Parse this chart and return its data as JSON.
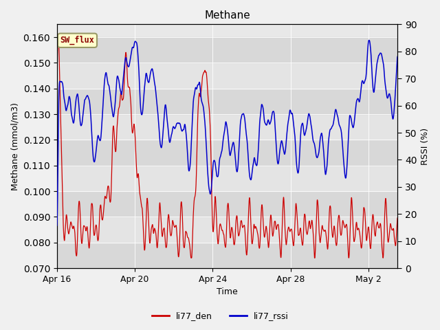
{
  "title": "Methane",
  "xlabel": "Time",
  "ylabel_left": "Methane (mmol/m3)",
  "ylabel_right": "RSSI (%)",
  "ylim_left": [
    0.07,
    0.165
  ],
  "ylim_right": [
    0,
    90
  ],
  "yticks_left": [
    0.07,
    0.08,
    0.09,
    0.1,
    0.11,
    0.12,
    0.13,
    0.14,
    0.15,
    0.16
  ],
  "yticks_right": [
    0,
    10,
    20,
    30,
    40,
    50,
    60,
    70,
    80,
    90
  ],
  "xtick_labels": [
    "Apr 16",
    "Apr 20",
    "Apr 24",
    "Apr 28",
    "May 2"
  ],
  "color_den": "#cc0000",
  "color_rssi": "#0000cc",
  "legend_den": "li77_den",
  "legend_rssi": "li77_rssi",
  "annotation_label": "SW_flux",
  "annotation_bg": "#ffffcc",
  "annotation_border": "#999966",
  "figsize": [
    6.4,
    4.8
  ],
  "dpi": 100
}
